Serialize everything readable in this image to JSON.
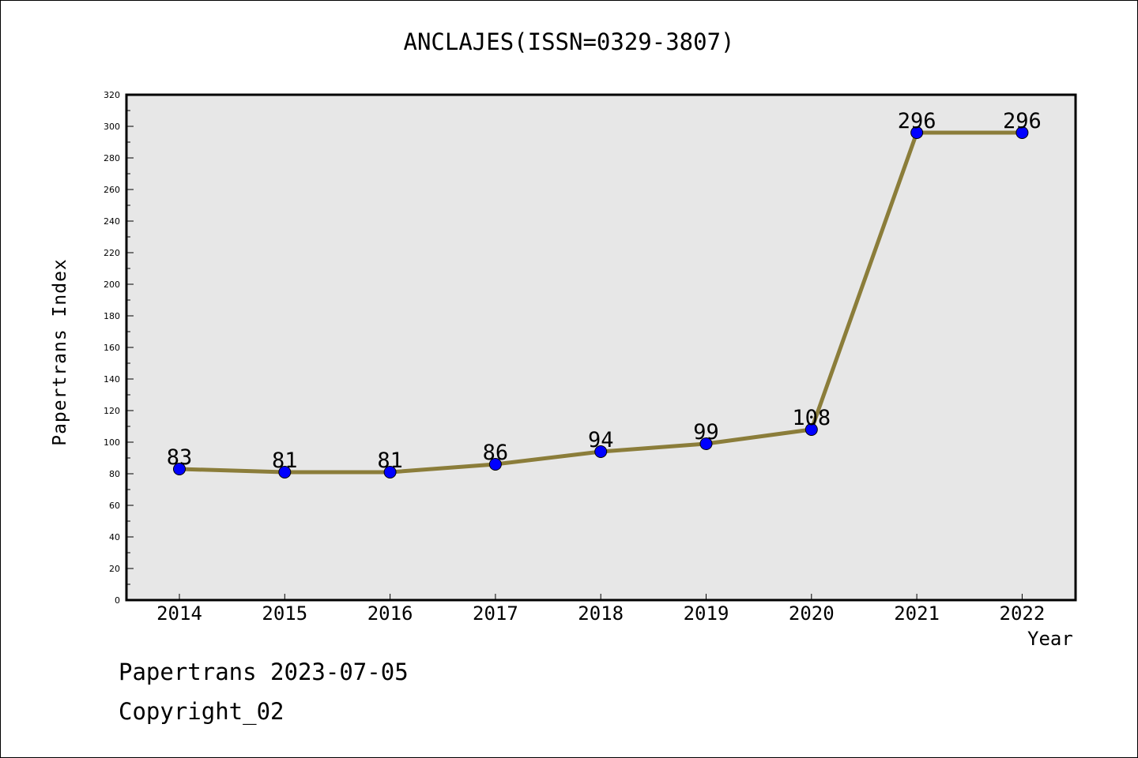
{
  "chart_data": {
    "type": "line",
    "title": "ANCLAJES(ISSN=0329-3807)",
    "xlabel": "Year",
    "ylabel": "Papertrans Index",
    "x": [
      "2014",
      "2015",
      "2016",
      "2017",
      "2018",
      "2019",
      "2020",
      "2021",
      "2022"
    ],
    "series": [
      {
        "values": [
          83,
          81,
          81,
          86,
          94,
          99,
          108,
          296,
          296
        ]
      }
    ],
    "ylim": [
      0,
      320
    ],
    "ytick_step": 20,
    "yticks": [
      "0",
      "20",
      "40",
      "60",
      "80",
      "100",
      "120",
      "140",
      "160",
      "180",
      "200",
      "220",
      "240",
      "260",
      "280",
      "300",
      "320"
    ],
    "data_labels": [
      "83",
      "81",
      "81",
      "86",
      "94",
      "99",
      "108",
      "296",
      "296"
    ],
    "grid": false,
    "colors": {
      "line": "#8b7d3a",
      "marker": "#0000ff",
      "plot_bg": "#e7e7e7"
    }
  },
  "footer": {
    "source": "Papertrans 2023-07-05",
    "copyright": "Copyright_02"
  }
}
